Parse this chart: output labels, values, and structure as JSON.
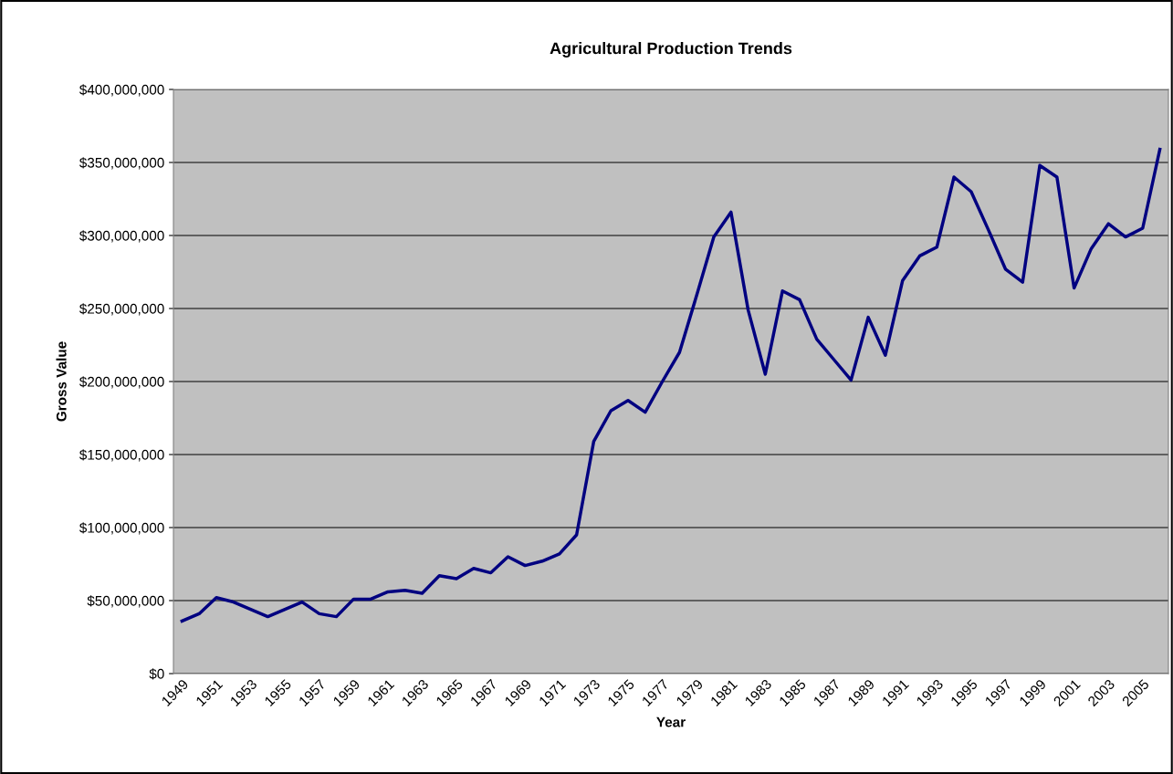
{
  "chart_data": {
    "type": "line",
    "title": "Agricultural Production Trends",
    "xlabel": "Year",
    "ylabel": "Gross Value",
    "categories": [
      "1949",
      null,
      "1951",
      null,
      "1953",
      null,
      "1955",
      null,
      "1957",
      null,
      "1959",
      null,
      "1961",
      null,
      "1963",
      null,
      "1965",
      null,
      "1967",
      null,
      "1969",
      null,
      "1971",
      null,
      "1973",
      null,
      "1975",
      null,
      "1977",
      null,
      "1979",
      null,
      "1981",
      null,
      "1983",
      null,
      "1985",
      null,
      "1987",
      null,
      "1989",
      null,
      "1991",
      null,
      "1993",
      null,
      "1995",
      null,
      "1997",
      null,
      "1999",
      null,
      "2001",
      null,
      "2003",
      null,
      "2005",
      null
    ],
    "series": [
      {
        "color": "#000080",
        "values": [
          36000000,
          41000000,
          52000000,
          49000000,
          44000000,
          39000000,
          44000000,
          49000000,
          41000000,
          39000000,
          51000000,
          51000000,
          56000000,
          57000000,
          55000000,
          67000000,
          65000000,
          72000000,
          69000000,
          80000000,
          74000000,
          77000000,
          82000000,
          95000000,
          159000000,
          180000000,
          187000000,
          179000000,
          200000000,
          220000000,
          259000000,
          299000000,
          316000000,
          249000000,
          205000000,
          262000000,
          256000000,
          229000000,
          215000000,
          201000000,
          244000000,
          218000000,
          269000000,
          286000000,
          292000000,
          340000000,
          330000000,
          304000000,
          277000000,
          268000000,
          348000000,
          340000000,
          264000000,
          291000000,
          308000000,
          299000000,
          305000000,
          359000000
        ]
      }
    ],
    "ylim": [
      0,
      400000000
    ],
    "yticks": [
      {
        "value": 0,
        "label": "$0"
      },
      {
        "value": 50000000,
        "label": "$50,000,000"
      },
      {
        "value": 100000000,
        "label": "$100,000,000"
      },
      {
        "value": 150000000,
        "label": "$150,000,000"
      },
      {
        "value": 200000000,
        "label": "$200,000,000"
      },
      {
        "value": 250000000,
        "label": "$250,000,000"
      },
      {
        "value": 300000000,
        "label": "$300,000,000"
      },
      {
        "value": 350000000,
        "label": "$350,000,000"
      },
      {
        "value": 400000000,
        "label": "$400,000,000"
      }
    ],
    "grid": "y",
    "legend": false,
    "marker": "none",
    "line_style": "solid"
  }
}
